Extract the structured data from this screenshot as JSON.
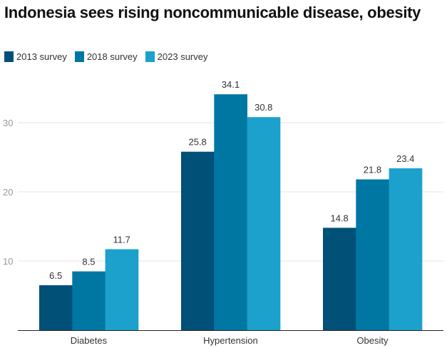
{
  "chart_data": {
    "type": "bar",
    "title": "Indonesia sees rising noncommunicable disease, obesity",
    "categories": [
      "Diabetes",
      "Hypertension",
      "Obesity"
    ],
    "series": [
      {
        "name": "2013 survey",
        "color": "#005078",
        "values": [
          6.5,
          25.8,
          14.8
        ]
      },
      {
        "name": "2018 survey",
        "color": "#0077a3",
        "values": [
          8.5,
          34.1,
          21.8
        ]
      },
      {
        "name": "2023 survey",
        "color": "#1ba1cb",
        "values": [
          11.7,
          30.8,
          23.4
        ]
      }
    ],
    "xlabel": "",
    "ylabel": "",
    "yticks": [
      10,
      20,
      30
    ],
    "ylim": [
      0,
      37
    ],
    "grid": true,
    "legend": "top-left",
    "data_labels": true
  }
}
